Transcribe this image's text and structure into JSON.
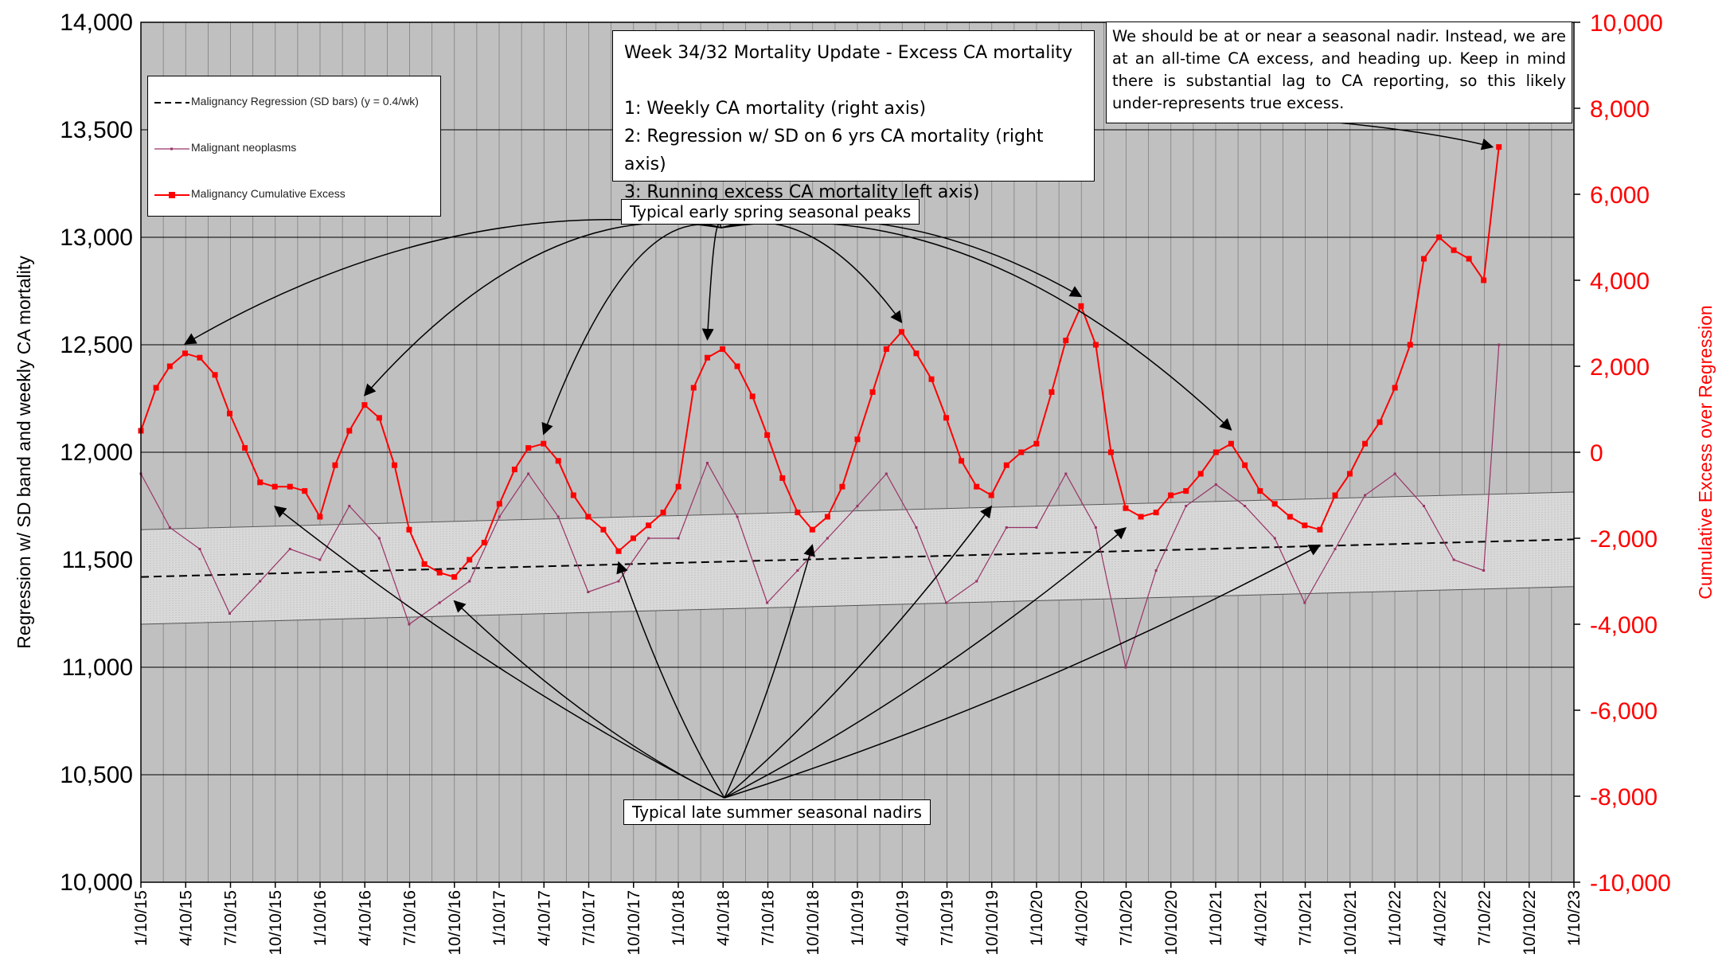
{
  "chart_data": {
    "type": "line",
    "title_box": {
      "title": "Week 34/32 Mortality Update - Excess CA mortality",
      "lines": [
        "1: Weekly CA mortality (right axis)",
        "2: Regression w/ SD on 6 yrs CA mortality (right axis)",
        "3: Running excess CA mortality left axis)"
      ]
    },
    "note": "We should be at or near a seasonal nadir. Instead, we are at an all-time CA excess, and heading up. Keep in mind there is substantial lag to CA reporting, so this likely under-represents true excess.",
    "annotations": {
      "peaks": "Typical early spring seasonal peaks",
      "nadirs": "Typical late summer seasonal nadirs"
    },
    "legend": [
      {
        "name": "Malignancy Regression (SD bars) (y = 0.4/wk)",
        "color": "#000000",
        "style": "dashed"
      },
      {
        "name": "Malignant neoplasms",
        "color": "#993366",
        "style": "thin-line"
      },
      {
        "name": "Malignancy Cumulative Excess",
        "color": "#ff0000",
        "style": "line-square-markers"
      }
    ],
    "ylabel_left": "Regression w/ SD band and weekly CA mortality",
    "ylabel_right": "Cumulative Excess over Regression",
    "y_left": {
      "min": 10000,
      "max": 14000,
      "ticks": [
        "10,000",
        "10,500",
        "11,000",
        "11,500",
        "12,000",
        "12,500",
        "13,000",
        "13,500",
        "14,000"
      ]
    },
    "y_right": {
      "min": -10000,
      "max": 10000,
      "ticks": [
        "-10,000",
        "-8,000",
        "-6,000",
        "-4,000",
        "-2,000",
        "0",
        "2,000",
        "4,000",
        "6,000",
        "8,000",
        "10,000"
      ]
    },
    "x_ticks": [
      "1/10/15",
      "4/10/15",
      "7/10/15",
      "10/10/15",
      "1/10/16",
      "4/10/16",
      "7/10/16",
      "10/10/16",
      "1/10/17",
      "4/10/17",
      "7/10/17",
      "10/10/17",
      "1/10/18",
      "4/10/18",
      "7/10/18",
      "10/10/18",
      "1/10/19",
      "4/10/19",
      "7/10/19",
      "10/10/19",
      "1/10/20",
      "4/10/20",
      "7/10/20",
      "10/10/20",
      "1/10/21",
      "4/10/21",
      "7/10/21",
      "10/10/21",
      "1/10/22",
      "4/10/22",
      "7/10/22",
      "10/10/22",
      "1/10/23"
    ],
    "x_range": [
      "2015-01-10",
      "2023-01-10"
    ],
    "grid": true,
    "plot_background": "#c0c0c0",
    "colors": {
      "cumulative": "#ff0000",
      "weekly": "#993366",
      "regression": "#000000",
      "band": "#d9d9d9"
    },
    "regression": {
      "x": [
        "2015-01-10",
        "2023-01-10"
      ],
      "y": [
        11420,
        11595
      ],
      "sd": 220
    },
    "cumulative_excess": {
      "x": [
        "2015-01-10",
        "2015-02-10",
        "2015-03-10",
        "2015-04-10",
        "2015-05-10",
        "2015-06-10",
        "2015-07-10",
        "2015-08-10",
        "2015-09-10",
        "2015-10-10",
        "2015-11-10",
        "2015-12-10",
        "2016-01-10",
        "2016-02-10",
        "2016-03-10",
        "2016-04-10",
        "2016-05-10",
        "2016-06-10",
        "2016-07-10",
        "2016-08-10",
        "2016-09-10",
        "2016-10-10",
        "2016-11-10",
        "2016-12-10",
        "2017-01-10",
        "2017-02-10",
        "2017-03-10",
        "2017-04-10",
        "2017-05-10",
        "2017-06-10",
        "2017-07-10",
        "2017-08-10",
        "2017-09-10",
        "2017-10-10",
        "2017-11-10",
        "2017-12-10",
        "2018-01-10",
        "2018-02-10",
        "2018-03-10",
        "2018-04-10",
        "2018-05-10",
        "2018-06-10",
        "2018-07-10",
        "2018-08-10",
        "2018-09-10",
        "2018-10-10",
        "2018-11-10",
        "2018-12-10",
        "2019-01-10",
        "2019-02-10",
        "2019-03-10",
        "2019-04-10",
        "2019-05-10",
        "2019-06-10",
        "2019-07-10",
        "2019-08-10",
        "2019-09-10",
        "2019-10-10",
        "2019-11-10",
        "2019-12-10",
        "2020-01-10",
        "2020-02-10",
        "2020-03-10",
        "2020-04-10",
        "2020-05-10",
        "2020-06-10",
        "2020-07-10",
        "2020-08-10",
        "2020-09-10",
        "2020-10-10",
        "2020-11-10",
        "2020-12-10",
        "2021-01-10",
        "2021-02-10",
        "2021-03-10",
        "2021-04-10",
        "2021-05-10",
        "2021-06-10",
        "2021-07-10",
        "2021-08-10",
        "2021-09-10",
        "2021-10-10",
        "2021-11-10",
        "2021-12-10",
        "2022-01-10",
        "2022-02-10",
        "2022-03-10",
        "2022-04-10",
        "2022-05-10",
        "2022-06-10",
        "2022-07-10",
        "2022-08-10"
      ],
      "y": [
        500,
        1500,
        2000,
        2300,
        2200,
        1800,
        900,
        100,
        -700,
        -800,
        -800,
        -900,
        -1500,
        -300,
        500,
        1100,
        800,
        -300,
        -1800,
        -2600,
        -2800,
        -2900,
        -2500,
        -2100,
        -1200,
        -400,
        100,
        200,
        -200,
        -1000,
        -1500,
        -1800,
        -2300,
        -2000,
        -1700,
        -1400,
        -800,
        1500,
        2200,
        2400,
        2000,
        1300,
        400,
        -600,
        -1400,
        -1800,
        -1500,
        -800,
        300,
        1400,
        2400,
        2800,
        2300,
        1700,
        800,
        -200,
        -800,
        -1000,
        -300,
        0,
        200,
        1400,
        2600,
        3400,
        2500,
        0,
        -1300,
        -1500,
        -1400,
        -1000,
        -900,
        -500,
        0,
        200,
        -300,
        -900,
        -1200,
        -1500,
        -1700,
        -1800,
        -1000,
        -500,
        200,
        700,
        1500,
        2500,
        4500,
        5000,
        4700,
        4500,
        4000,
        7100
      ]
    },
    "weekly_mortality": {
      "x": [
        "2015-01-10",
        "2015-03-10",
        "2015-05-10",
        "2015-07-10",
        "2015-09-10",
        "2015-11-10",
        "2016-01-10",
        "2016-03-10",
        "2016-05-10",
        "2016-07-10",
        "2016-09-10",
        "2016-11-10",
        "2017-01-10",
        "2017-03-10",
        "2017-05-10",
        "2017-07-10",
        "2017-09-10",
        "2017-11-10",
        "2018-01-10",
        "2018-03-10",
        "2018-05-10",
        "2018-07-10",
        "2018-09-10",
        "2018-11-10",
        "2019-01-10",
        "2019-03-10",
        "2019-05-10",
        "2019-07-10",
        "2019-09-10",
        "2019-11-10",
        "2020-01-10",
        "2020-03-10",
        "2020-05-10",
        "2020-07-10",
        "2020-09-10",
        "2020-11-10",
        "2021-01-10",
        "2021-03-10",
        "2021-05-10",
        "2021-07-10",
        "2021-09-10",
        "2021-11-10",
        "2022-01-10",
        "2022-03-10",
        "2022-05-10",
        "2022-07-10",
        "2022-08-10"
      ],
      "y": [
        11900,
        11650,
        11550,
        11250,
        11400,
        11550,
        11500,
        11750,
        11600,
        11200,
        11300,
        11400,
        11700,
        11900,
        11700,
        11350,
        11400,
        11600,
        11600,
        11950,
        11700,
        11300,
        11450,
        11600,
        11750,
        11900,
        11650,
        11300,
        11400,
        11650,
        11650,
        11900,
        11650,
        11000,
        11450,
        11750,
        11850,
        11750,
        11600,
        11300,
        11550,
        11800,
        11900,
        11750,
        11500,
        11450,
        12500
      ]
    }
  }
}
